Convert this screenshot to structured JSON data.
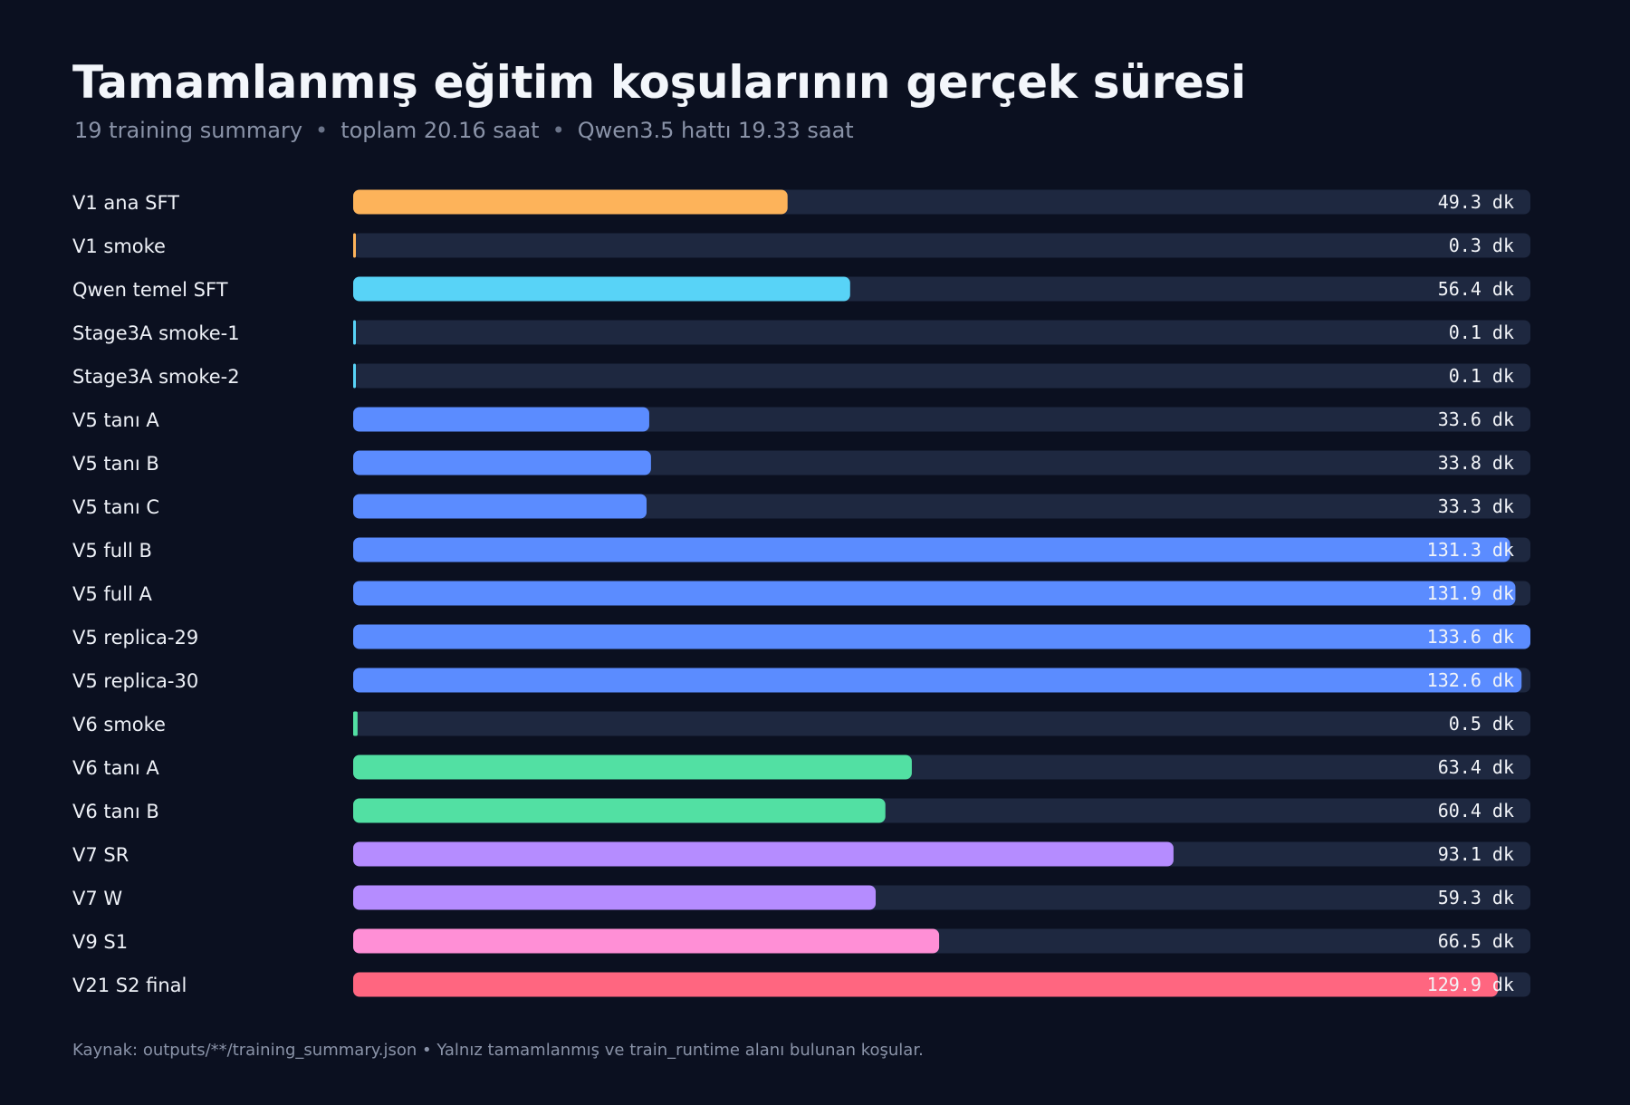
{
  "header": {
    "title": "Tamamlanmış eğitim koşularının gerçek süresi",
    "subtitle_parts": [
      "19 training summary",
      "toplam 20.16 saat",
      "Qwen3.5 hattı 19.33 saat"
    ],
    "separator": "•"
  },
  "footer": {
    "note": "Kaynak: outputs/**/training_summary.json • Yalnız tamamlanmış ve train_runtime alanı bulunan koşular."
  },
  "colors": {
    "background": "#0b1020",
    "track": "#1e2840",
    "orange": "#fdb35a",
    "cyan": "#58d3f7",
    "blue": "#5b8cff",
    "green": "#52e0a3",
    "purple": "#b58cff",
    "pink": "#ff8fd6",
    "red": "#ff6680"
  },
  "chart_data": {
    "type": "bar",
    "orientation": "horizontal",
    "unit": "dk",
    "xlim": [
      0,
      133.6
    ],
    "grid": false,
    "categories": [
      "V1 ana SFT",
      "V1 smoke",
      "Qwen temel SFT",
      "Stage3A smoke-1",
      "Stage3A smoke-2",
      "V5 tanı A",
      "V5 tanı B",
      "V5 tanı C",
      "V5 full B",
      "V5 full A",
      "V5 replica-29",
      "V5 replica-30",
      "V6 smoke",
      "V6 tanı A",
      "V6 tanı B",
      "V7 SR",
      "V7 W",
      "V9 S1",
      "V21 S2 final"
    ],
    "values": [
      49.3,
      0.3,
      56.4,
      0.1,
      0.1,
      33.6,
      33.8,
      33.3,
      131.3,
      131.9,
      133.6,
      132.6,
      0.5,
      63.4,
      60.4,
      93.1,
      59.3,
      66.5,
      129.9
    ],
    "value_labels": [
      "49.3 dk",
      "0.3 dk",
      "56.4 dk",
      "0.1 dk",
      "0.1 dk",
      "33.6 dk",
      "33.8 dk",
      "33.3 dk",
      "131.3 dk",
      "131.9 dk",
      "133.6 dk",
      "132.6 dk",
      "0.5 dk",
      "63.4 dk",
      "60.4 dk",
      "93.1 dk",
      "59.3 dk",
      "66.5 dk",
      "129.9 dk"
    ],
    "bar_colors": [
      "orange",
      "orange",
      "cyan",
      "cyan",
      "cyan",
      "blue",
      "blue",
      "blue",
      "blue",
      "blue",
      "blue",
      "blue",
      "green",
      "green",
      "green",
      "purple",
      "purple",
      "pink",
      "red"
    ]
  }
}
